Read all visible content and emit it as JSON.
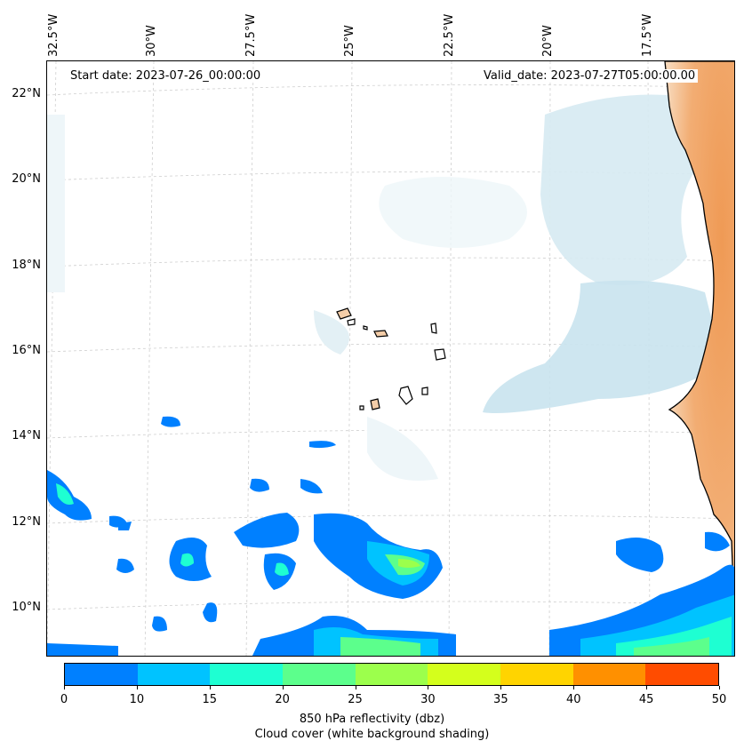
{
  "map": {
    "lon_labels": [
      "32.5°W",
      "30°W",
      "27.5°W",
      "25°W",
      "22.5°W",
      "20°W",
      "17.5°W"
    ],
    "lat_labels": [
      "22°N",
      "20°N",
      "18°N",
      "16°N",
      "14°N",
      "12°N",
      "10°N"
    ],
    "start_date": "Start date: 2023-07-26_00:00:00",
    "valid_date": "Valid_date: 2023-07-27T05:00:00.00",
    "land_color": "#f4cda8",
    "coast_color": "#000000"
  },
  "colorbar": {
    "ticks": [
      "0",
      "10",
      "15",
      "20",
      "25",
      "30",
      "35",
      "40",
      "45",
      "50"
    ],
    "colors": [
      "#0080ff",
      "#00c3ff",
      "#1effd2",
      "#5cff8c",
      "#9cff4c",
      "#d4ff1c",
      "#ffd400",
      "#ff9000",
      "#ff4c00"
    ],
    "label": "850 hPa reflectivity (dbz)",
    "sublabel": "Cloud cover (white background shading)"
  }
}
